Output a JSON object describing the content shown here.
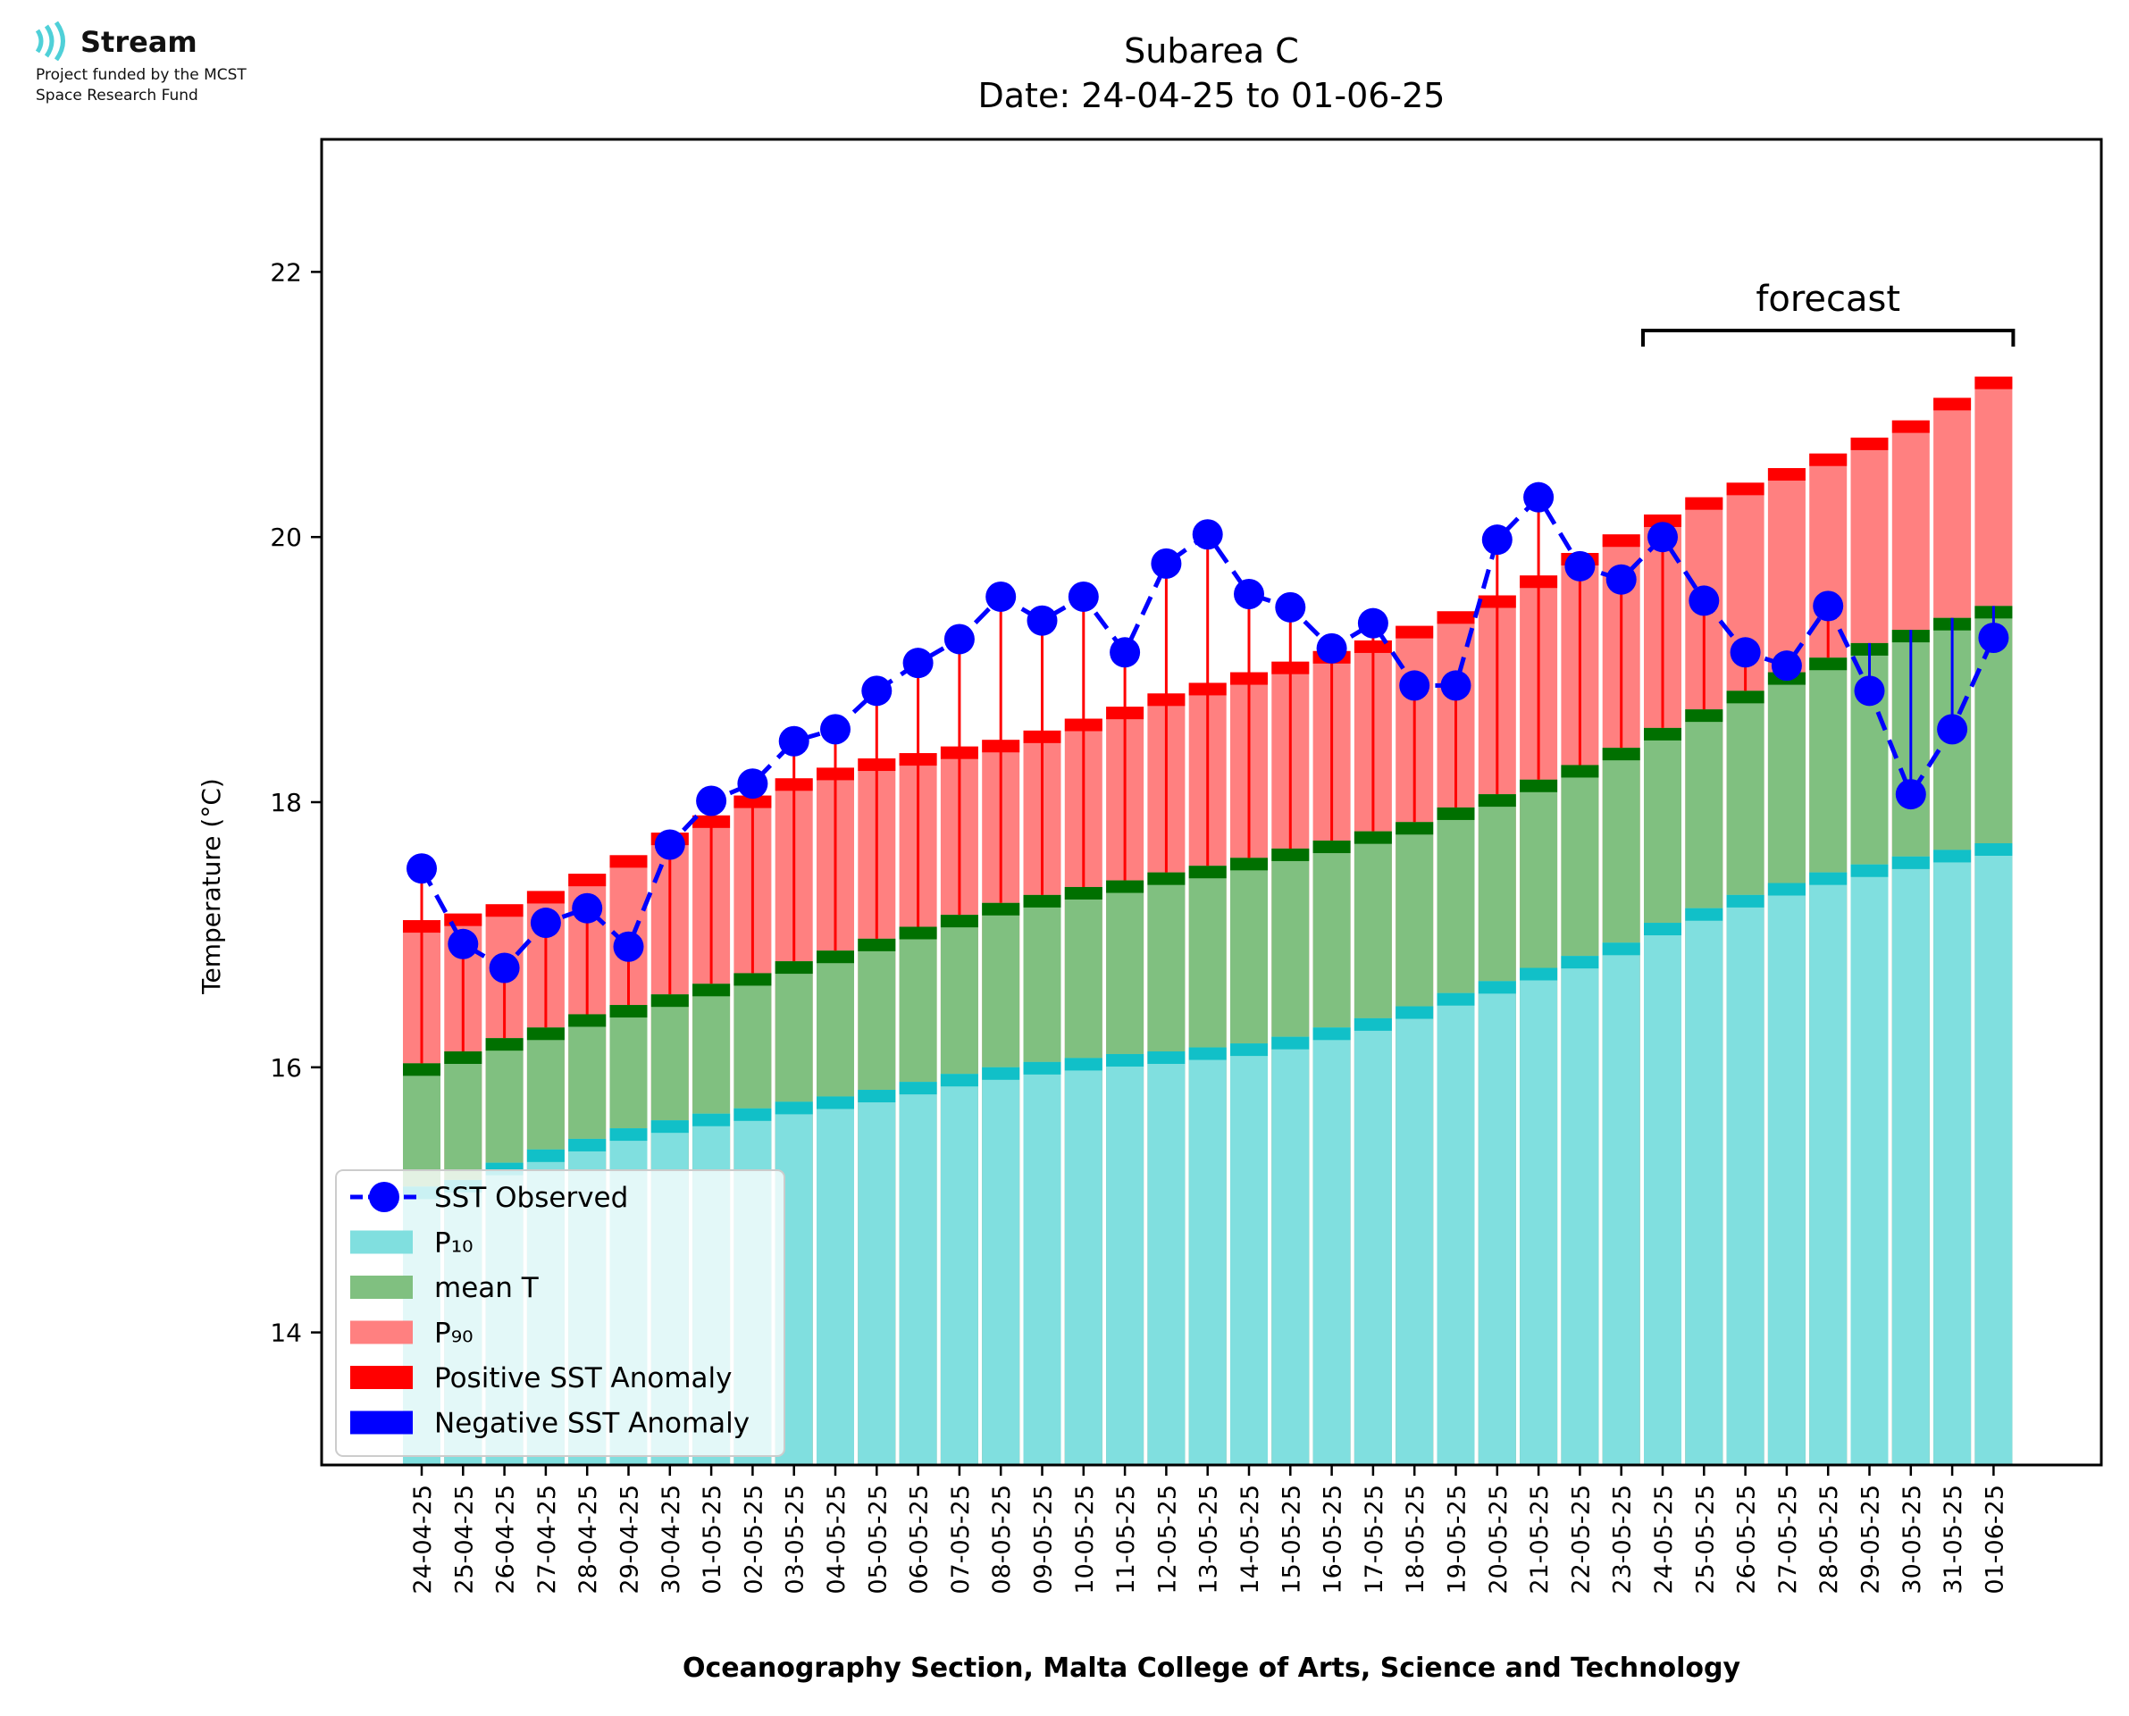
{
  "logo": {
    "icon": "signal-waves-icon",
    "name": "Stream",
    "line1": "Project funded by the MCST",
    "line2": "Space Research Fund"
  },
  "chart_data": {
    "type": "bar",
    "title": "Subarea C",
    "subtitle": "Date: 24-04-25 to 01-06-25",
    "xlabel": "Oceanography Section, Malta College of Arts, Science and Technology",
    "ylabel": "Temperature (°C)",
    "ylim": [
      13,
      23
    ],
    "yticks": [
      14,
      16,
      18,
      20,
      22
    ],
    "grid": false,
    "legend_position": "lower-left",
    "annotation": {
      "text": "forecast",
      "from": "24-05-25",
      "to": "01-06-25"
    },
    "categories": [
      "24-04-25",
      "25-04-25",
      "26-04-25",
      "27-04-25",
      "28-04-25",
      "29-04-25",
      "30-04-25",
      "01-05-25",
      "02-05-25",
      "03-05-25",
      "04-05-25",
      "05-05-25",
      "06-05-25",
      "07-05-25",
      "08-05-25",
      "09-05-25",
      "10-05-25",
      "11-05-25",
      "12-05-25",
      "13-05-25",
      "14-05-25",
      "15-05-25",
      "16-05-25",
      "17-05-25",
      "18-05-25",
      "19-05-25",
      "20-05-25",
      "21-05-25",
      "22-05-25",
      "23-05-25",
      "24-05-25",
      "25-05-25",
      "26-05-25",
      "27-05-25",
      "28-05-25",
      "29-05-25",
      "30-05-25",
      "31-05-25",
      "01-06-25"
    ],
    "series": [
      {
        "name": "SST Observed",
        "kind": "line",
        "color": "#0000ff",
        "values": [
          17.5,
          16.93,
          16.75,
          17.09,
          17.2,
          16.91,
          17.68,
          18.01,
          18.14,
          18.46,
          18.55,
          18.84,
          19.05,
          19.23,
          19.55,
          19.37,
          19.55,
          19.13,
          19.8,
          20.02,
          19.57,
          19.47,
          19.16,
          19.35,
          18.88,
          18.88,
          19.98,
          20.3,
          19.78,
          19.68,
          20.0,
          19.52,
          19.13,
          19.03,
          19.48,
          18.84,
          18.06,
          18.55,
          19.24
        ]
      },
      {
        "name": "P₁₀",
        "kind": "bar",
        "color": "#80dfdf",
        "edge_color": "#11c0c8",
        "values": [
          15.1,
          15.15,
          15.28,
          15.38,
          15.46,
          15.54,
          15.6,
          15.65,
          15.69,
          15.74,
          15.78,
          15.83,
          15.89,
          15.95,
          16.0,
          16.04,
          16.07,
          16.1,
          16.12,
          16.15,
          16.18,
          16.23,
          16.3,
          16.37,
          16.46,
          16.56,
          16.65,
          16.75,
          16.84,
          16.94,
          17.09,
          17.2,
          17.3,
          17.39,
          17.47,
          17.53,
          17.59,
          17.64,
          17.69
        ]
      },
      {
        "name": "mean T",
        "kind": "bar",
        "color": "#80c080",
        "edge_color": "#007000",
        "values": [
          16.03,
          16.12,
          16.22,
          16.3,
          16.4,
          16.47,
          16.55,
          16.63,
          16.71,
          16.8,
          16.88,
          16.97,
          17.06,
          17.15,
          17.24,
          17.3,
          17.36,
          17.41,
          17.47,
          17.52,
          17.58,
          17.65,
          17.71,
          17.78,
          17.85,
          17.96,
          18.06,
          18.17,
          18.28,
          18.41,
          18.56,
          18.7,
          18.84,
          18.98,
          19.09,
          19.2,
          19.3,
          19.39,
          19.48
        ]
      },
      {
        "name": "P₉₀",
        "kind": "bar",
        "color": "#ff8080",
        "edge_color": "#ff0000",
        "values": [
          17.11,
          17.16,
          17.23,
          17.33,
          17.46,
          17.6,
          17.77,
          17.9,
          18.05,
          18.18,
          18.26,
          18.33,
          18.37,
          18.42,
          18.47,
          18.54,
          18.63,
          18.72,
          18.82,
          18.9,
          18.98,
          19.06,
          19.14,
          19.22,
          19.33,
          19.44,
          19.56,
          19.71,
          19.88,
          20.02,
          20.17,
          20.3,
          20.41,
          20.52,
          20.63,
          20.75,
          20.88,
          21.05,
          21.21
        ]
      },
      {
        "name": "Positive SST Anomaly",
        "kind": "anomaly",
        "color": "#ff0000"
      },
      {
        "name": "Negative SST Anomaly",
        "kind": "anomaly",
        "color": "#0000ff"
      }
    ]
  }
}
